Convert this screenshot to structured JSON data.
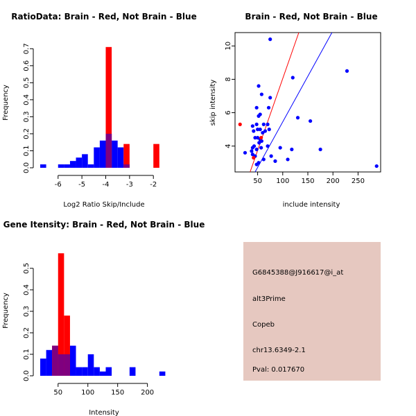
{
  "colors": {
    "red": "#ff0000",
    "blue": "#0000ff",
    "overlap": "#7f007f",
    "panel_bg": "#e6c8c0",
    "pval": "#8b0000"
  },
  "chart_data": [
    {
      "type": "histogram",
      "title": "RatioData: Brain - Red, Not Brain - Blue",
      "xlabel": "Log2 Ratio Skip/Include",
      "ylabel": "Frequency",
      "xlim": [
        -6.75,
        -1.25
      ],
      "ylim": [
        0,
        0.75
      ],
      "xticks": [
        -6,
        -5,
        -4,
        -3,
        -2
      ],
      "xtick_labels": [
        "-6",
        "-5",
        "-4",
        "-3",
        "-2"
      ],
      "yticks": [
        0.0,
        0.1,
        0.2,
        0.3,
        0.4,
        0.5,
        0.6,
        0.7
      ],
      "ytick_labels": [
        "0.0",
        "0.1",
        "0.2",
        "0.3",
        "0.4",
        "0.5",
        "0.6",
        "0.7"
      ],
      "bin_width": 0.25,
      "series": [
        {
          "name": "Not Brain",
          "color": "blue",
          "bins": [
            [
              -6.75,
              0.02
            ],
            [
              -6.0,
              0.02
            ],
            [
              -5.75,
              0.02
            ],
            [
              -5.5,
              0.04
            ],
            [
              -5.25,
              0.06
            ],
            [
              -5.0,
              0.08
            ],
            [
              -4.75,
              0.02
            ],
            [
              -4.5,
              0.12
            ],
            [
              -4.25,
              0.16
            ],
            [
              -4.0,
              0.2
            ],
            [
              -3.75,
              0.16
            ],
            [
              -3.5,
              0.12
            ],
            [
              -3.25,
              0.02
            ]
          ]
        },
        {
          "name": "Brain",
          "color": "red",
          "bins": [
            [
              -4.0,
              0.71
            ],
            [
              -3.25,
              0.14
            ],
            [
              -2.0,
              0.14
            ]
          ]
        }
      ]
    },
    {
      "type": "scatter",
      "title": "Brain - Red, Not Brain - Blue",
      "xlabel": "include intensity",
      "ylabel": "skip intensity",
      "xlim": [
        5,
        295
      ],
      "ylim": [
        2.45,
        10.8
      ],
      "xticks": [
        50,
        100,
        150,
        200,
        250
      ],
      "xtick_labels": [
        "50",
        "100",
        "150",
        "200",
        "250"
      ],
      "yticks": [
        4,
        6,
        8,
        10
      ],
      "ytick_labels": [
        "4",
        "6",
        "8",
        "10"
      ],
      "series": [
        {
          "name": "Not Brain",
          "color": "blue",
          "points": [
            [
              75,
              10.4
            ],
            [
              120,
              8.1
            ],
            [
              228,
              8.5
            ],
            [
              52,
              7.6
            ],
            [
              58,
              7.1
            ],
            [
              75,
              6.9
            ],
            [
              48,
              6.3
            ],
            [
              72,
              6.3
            ],
            [
              55,
              5.9
            ],
            [
              52,
              5.8
            ],
            [
              130,
              5.7
            ],
            [
              155,
              5.5
            ],
            [
              40,
              5.2
            ],
            [
              48,
              5.3
            ],
            [
              50,
              5.0
            ],
            [
              55,
              5.0
            ],
            [
              70,
              5.3
            ],
            [
              73,
              5.0
            ],
            [
              62,
              5.3
            ],
            [
              42,
              4.9
            ],
            [
              50,
              4.5
            ],
            [
              55,
              4.4
            ],
            [
              58,
              4.3
            ],
            [
              45,
              4.5
            ],
            [
              65,
              4.9
            ],
            [
              60,
              4.8
            ],
            [
              40,
              3.9
            ],
            [
              43,
              4.0
            ],
            [
              48,
              3.8
            ],
            [
              53,
              4.2
            ],
            [
              57,
              3.9
            ],
            [
              70,
              4.0
            ],
            [
              95,
              3.9
            ],
            [
              25,
              3.6
            ],
            [
              40,
              3.5
            ],
            [
              45,
              3.4
            ],
            [
              62,
              3.2
            ],
            [
              85,
              3.1
            ],
            [
              110,
              3.2
            ],
            [
              48,
              2.9
            ],
            [
              52,
              3.0
            ],
            [
              175,
              3.8
            ],
            [
              118,
              3.8
            ],
            [
              38,
              3.7
            ],
            [
              77,
              3.4
            ],
            [
              287,
              2.8
            ]
          ]
        },
        {
          "name": "Brain",
          "color": "red",
          "points": [
            [
              15,
              5.3
            ],
            [
              57,
              4.5
            ],
            [
              42,
              3.3
            ]
          ]
        }
      ],
      "fit_lines": [
        {
          "name": "Brain",
          "color": "red",
          "from": [
            35,
            2.45
          ],
          "to": [
            132,
            10.8
          ]
        },
        {
          "name": "Not Brain",
          "color": "blue",
          "from": [
            45,
            2.45
          ],
          "to": [
            198,
            10.8
          ]
        }
      ]
    },
    {
      "type": "histogram",
      "title": "Gene Itensity: Brain - Red, Not Brain - Blue",
      "xlabel": "Intensity",
      "ylabel": "Frequency",
      "xlim": [
        20,
        240
      ],
      "ylim": [
        0,
        0.6
      ],
      "xticks": [
        50,
        100,
        150,
        200
      ],
      "xtick_labels": [
        "50",
        "100",
        "150",
        "200"
      ],
      "yticks": [
        0.0,
        0.1,
        0.2,
        0.3,
        0.4,
        0.5
      ],
      "ytick_labels": [
        "0.0",
        "0.1",
        "0.2",
        "0.3",
        "0.4",
        "0.5"
      ],
      "bin_width": 10,
      "series": [
        {
          "name": "Not Brain",
          "color": "blue",
          "bins": [
            [
              20,
              0.08
            ],
            [
              30,
              0.12
            ],
            [
              40,
              0.14
            ],
            [
              50,
              0.1
            ],
            [
              60,
              0.1
            ],
            [
              70,
              0.14
            ],
            [
              80,
              0.04
            ],
            [
              90,
              0.04
            ],
            [
              100,
              0.1
            ],
            [
              110,
              0.04
            ],
            [
              120,
              0.02
            ],
            [
              130,
              0.04
            ],
            [
              170,
              0.04
            ],
            [
              220,
              0.02
            ]
          ]
        },
        {
          "name": "Brain",
          "color": "red",
          "bins": [
            [
              40,
              0.14
            ],
            [
              50,
              0.57
            ],
            [
              60,
              0.28
            ]
          ]
        }
      ]
    }
  ],
  "info_panel": {
    "probe_id": "G6845388@J916617@i_at",
    "event_type": "alt3Prime",
    "gene": "Copeb",
    "location": "chr13.6349-2.1",
    "pval": "Pval: 0.017670"
  }
}
